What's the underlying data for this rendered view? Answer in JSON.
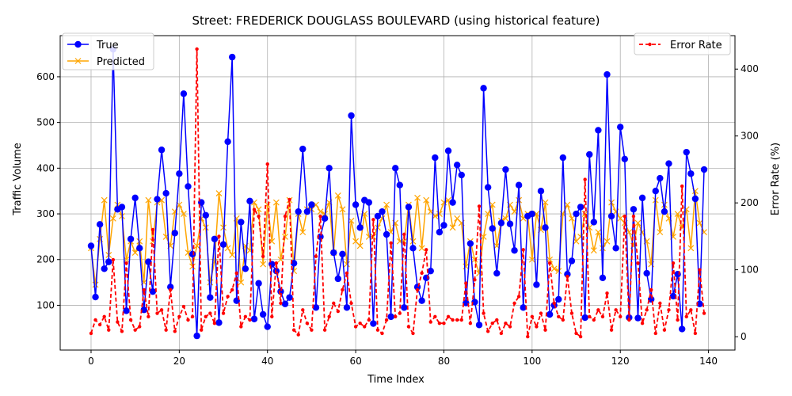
{
  "chart_data": {
    "type": "line",
    "title": "Street: FREDERICK DOUGLASS BOULEVARD (using historical feature)",
    "xlabel": "Time Index",
    "ylabel_left": "Traffic Volume",
    "ylabel_right": "Error Rate (%)",
    "xlim": [
      -7,
      146
    ],
    "ylim_left": [
      2,
      690
    ],
    "ylim_right": [
      -20,
      450
    ],
    "x_ticks": [
      0,
      20,
      40,
      60,
      80,
      100,
      120,
      140
    ],
    "y_ticks_left": [
      100,
      200,
      300,
      400,
      500,
      600
    ],
    "y_ticks_right": [
      0,
      100,
      200,
      300,
      400
    ],
    "grid": true,
    "legend_left_position": "upper-left",
    "legend_right_position": "upper-right",
    "colors": {
      "true": "#0000ff",
      "predicted": "#ffa500",
      "error": "#ff0000",
      "grid": "#b0b0b0"
    },
    "series": [
      {
        "name": "True",
        "axis": "left",
        "values": [
          230,
          118,
          277,
          180,
          195,
          660,
          310,
          315,
          88,
          245,
          335,
          225,
          90,
          195,
          130,
          332,
          440,
          345,
          140,
          258,
          388,
          563,
          360,
          212,
          33,
          325,
          297,
          117,
          245,
          62,
          233,
          458,
          643,
          110,
          282,
          180,
          328,
          70,
          148,
          80,
          53,
          190,
          175,
          130,
          103,
          117,
          192,
          305,
          442,
          305,
          320,
          95,
          250,
          290,
          400,
          215,
          158,
          212,
          95,
          515,
          320,
          270,
          330,
          325,
          60,
          295,
          305,
          255,
          75,
          400,
          363,
          95,
          315,
          225,
          140,
          110,
          160,
          175,
          423,
          260,
          275,
          438,
          325,
          407,
          385,
          105,
          235,
          107,
          57,
          575,
          358,
          268,
          170,
          280,
          397,
          278,
          220,
          363,
          95,
          295,
          300,
          145,
          350,
          270,
          80,
          100,
          113,
          423,
          168,
          197,
          300,
          315,
          73,
          430,
          282,
          483,
          160,
          605,
          295,
          225,
          490,
          420,
          73,
          310,
          72,
          335,
          170,
          113,
          350,
          378,
          305,
          410,
          120,
          168,
          48,
          435,
          388,
          333,
          103,
          397
        ]
      },
      {
        "name": "Predicted",
        "axis": "left",
        "values": [
          225,
          145,
          245,
          330,
          210,
          290,
          320,
          295,
          200,
          240,
          215,
          240,
          150,
          330,
          240,
          325,
          330,
          250,
          230,
          305,
          320,
          300,
          215,
          185,
          230,
          290,
          270,
          150,
          195,
          345,
          270,
          225,
          210,
          290,
          150,
          230,
          220,
          325,
          310,
          190,
          320,
          240,
          325,
          200,
          250,
          330,
          175,
          300,
          260,
          310,
          310,
          320,
          305,
          300,
          325,
          215,
          340,
          310,
          190,
          285,
          240,
          230,
          300,
          250,
          250,
          270,
          290,
          320,
          260,
          280,
          240,
          240,
          320,
          240,
          335,
          225,
          330,
          305,
          295,
          300,
          325,
          330,
          270,
          290,
          280,
          185,
          240,
          200,
          170,
          250,
          300,
          320,
          230,
          285,
          290,
          320,
          305,
          330,
          290,
          300,
          200,
          300,
          265,
          325,
          200,
          180,
          175,
          300,
          320,
          290,
          240,
          250,
          300,
          270,
          220,
          260,
          225,
          240,
          325,
          305,
          290,
          280,
          260,
          230,
          280,
          260,
          240,
          190,
          330,
          260,
          320,
          290,
          250,
          300,
          270,
          310,
          225,
          350,
          280,
          260
        ]
      },
      {
        "name": "Error Rate",
        "axis": "right",
        "values": [
          5,
          25,
          18,
          30,
          10,
          115,
          22,
          8,
          110,
          25,
          10,
          15,
          70,
          30,
          160,
          35,
          40,
          10,
          70,
          8,
          30,
          45,
          25,
          30,
          430,
          10,
          30,
          35,
          20,
          150,
          35,
          60,
          70,
          95,
          15,
          30,
          25,
          190,
          180,
          120,
          258,
          30,
          110,
          50,
          180,
          205,
          10,
          3,
          40,
          20,
          10,
          120,
          180,
          10,
          30,
          50,
          38,
          70,
          95,
          50,
          15,
          20,
          15,
          25,
          175,
          10,
          5,
          25,
          140,
          30,
          35,
          153,
          15,
          5,
          70,
          95,
          130,
          22,
          30,
          20,
          20,
          30,
          25,
          25,
          25,
          80,
          20,
          85,
          195,
          35,
          8,
          20,
          25,
          5,
          20,
          15,
          50,
          60,
          130,
          0,
          30,
          15,
          35,
          10,
          110,
          50,
          30,
          25,
          90,
          35,
          5,
          0,
          235,
          30,
          25,
          40,
          30,
          65,
          10,
          40,
          30,
          180,
          25,
          180,
          110,
          20,
          40,
          70,
          5,
          50,
          10,
          40,
          110,
          25,
          225,
          30,
          40,
          5,
          100,
          35
        ]
      }
    ]
  }
}
